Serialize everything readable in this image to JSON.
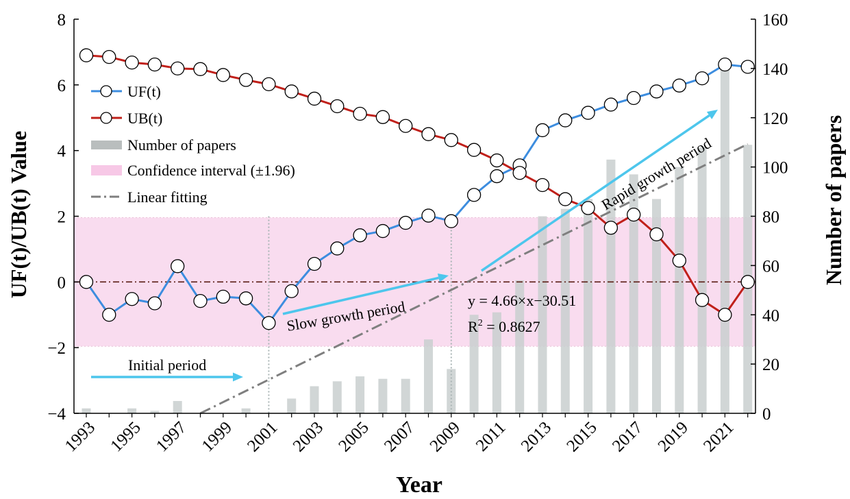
{
  "chart_data": {
    "type": "line",
    "title": "",
    "xlabel": "Year",
    "ylabel_left": "UF(t)/UB(t) Value",
    "ylabel_right": "Number of papers",
    "ylim_left": [
      -4,
      8
    ],
    "ylim_right": [
      0,
      160
    ],
    "years": [
      1993,
      1994,
      1995,
      1996,
      1997,
      1998,
      1999,
      2000,
      2001,
      2002,
      2003,
      2004,
      2005,
      2006,
      2007,
      2008,
      2009,
      2010,
      2011,
      2012,
      2013,
      2014,
      2015,
      2016,
      2017,
      2018,
      2019,
      2020,
      2021,
      2022
    ],
    "x_tick_labels": [
      "1993",
      "1995",
      "1997",
      "1999",
      "2001",
      "2003",
      "2005",
      "2007",
      "2009",
      "2011",
      "2013",
      "2015",
      "2017",
      "2019",
      "2021"
    ],
    "y_left_tick_labels": [
      "−4",
      "−2",
      "0",
      "2",
      "4",
      "6",
      "8"
    ],
    "y_left_tick_values": [
      -4,
      -2,
      0,
      2,
      4,
      6,
      8
    ],
    "y_right_tick_labels": [
      "0",
      "20",
      "40",
      "60",
      "80",
      "100",
      "120",
      "140",
      "160"
    ],
    "y_right_tick_values": [
      0,
      20,
      40,
      60,
      80,
      100,
      120,
      140,
      160
    ],
    "series": [
      {
        "name": "UF(t)",
        "color": "#3d8ddf",
        "axis": "left",
        "values": [
          0.0,
          -1.0,
          -0.52,
          -0.65,
          0.48,
          -0.58,
          -0.45,
          -0.5,
          -1.25,
          -0.28,
          0.55,
          1.02,
          1.42,
          1.55,
          1.8,
          2.02,
          1.85,
          2.65,
          3.22,
          3.55,
          4.62,
          4.92,
          5.15,
          5.4,
          5.6,
          5.8,
          5.98,
          6.2,
          6.62,
          6.55
        ]
      },
      {
        "name": "UB(t)",
        "color": "#c0201a",
        "axis": "left",
        "values": [
          6.9,
          6.85,
          6.68,
          6.62,
          6.5,
          6.48,
          6.3,
          6.15,
          6.02,
          5.8,
          5.58,
          5.35,
          5.12,
          5.02,
          4.75,
          4.5,
          4.32,
          4.02,
          3.7,
          3.32,
          2.95,
          2.52,
          2.25,
          1.65,
          2.05,
          1.45,
          0.65,
          -0.55,
          -1.0,
          0.0
        ]
      },
      {
        "name": "Number of papers",
        "color": "#c9cfcf",
        "axis": "right",
        "type": "bar",
        "values": [
          2,
          0,
          2,
          1,
          5,
          0,
          0,
          2,
          0,
          6,
          11,
          13,
          15,
          14,
          14,
          30,
          18,
          40,
          41,
          54,
          80,
          83,
          87,
          103,
          97,
          87,
          100,
          108,
          141,
          109
        ]
      }
    ],
    "confidence_interval": {
      "label": "Confidence interval (±1.96)",
      "lower": -1.96,
      "upper": 1.96,
      "color": "#f9dcef"
    },
    "linear_fit": {
      "label": "Linear fitting",
      "slope": 4.66,
      "intercept": -30.51,
      "x_start": 1998,
      "x_end": 2022,
      "color": "#7f7f7f"
    },
    "zero_line_color": "#5a1a12",
    "periods": [
      {
        "label": "Initial period",
        "boundary_year": 2001
      },
      {
        "label": "Slow growth period",
        "boundary_year": 2009
      },
      {
        "label": "Rapid growth period"
      }
    ],
    "arrow_color": "#4dc6ec",
    "equation_text": "y = 4.66×x−30.51",
    "r2_text": "R",
    "r2_sup": "2",
    "r2_value": " = 0.8627",
    "legend": [
      "UF(t)",
      "UB(t)",
      "Number of papers",
      "Confidence interval (±1.96)",
      "Linear fitting"
    ],
    "legend_position": "top-left",
    "grid": false
  }
}
